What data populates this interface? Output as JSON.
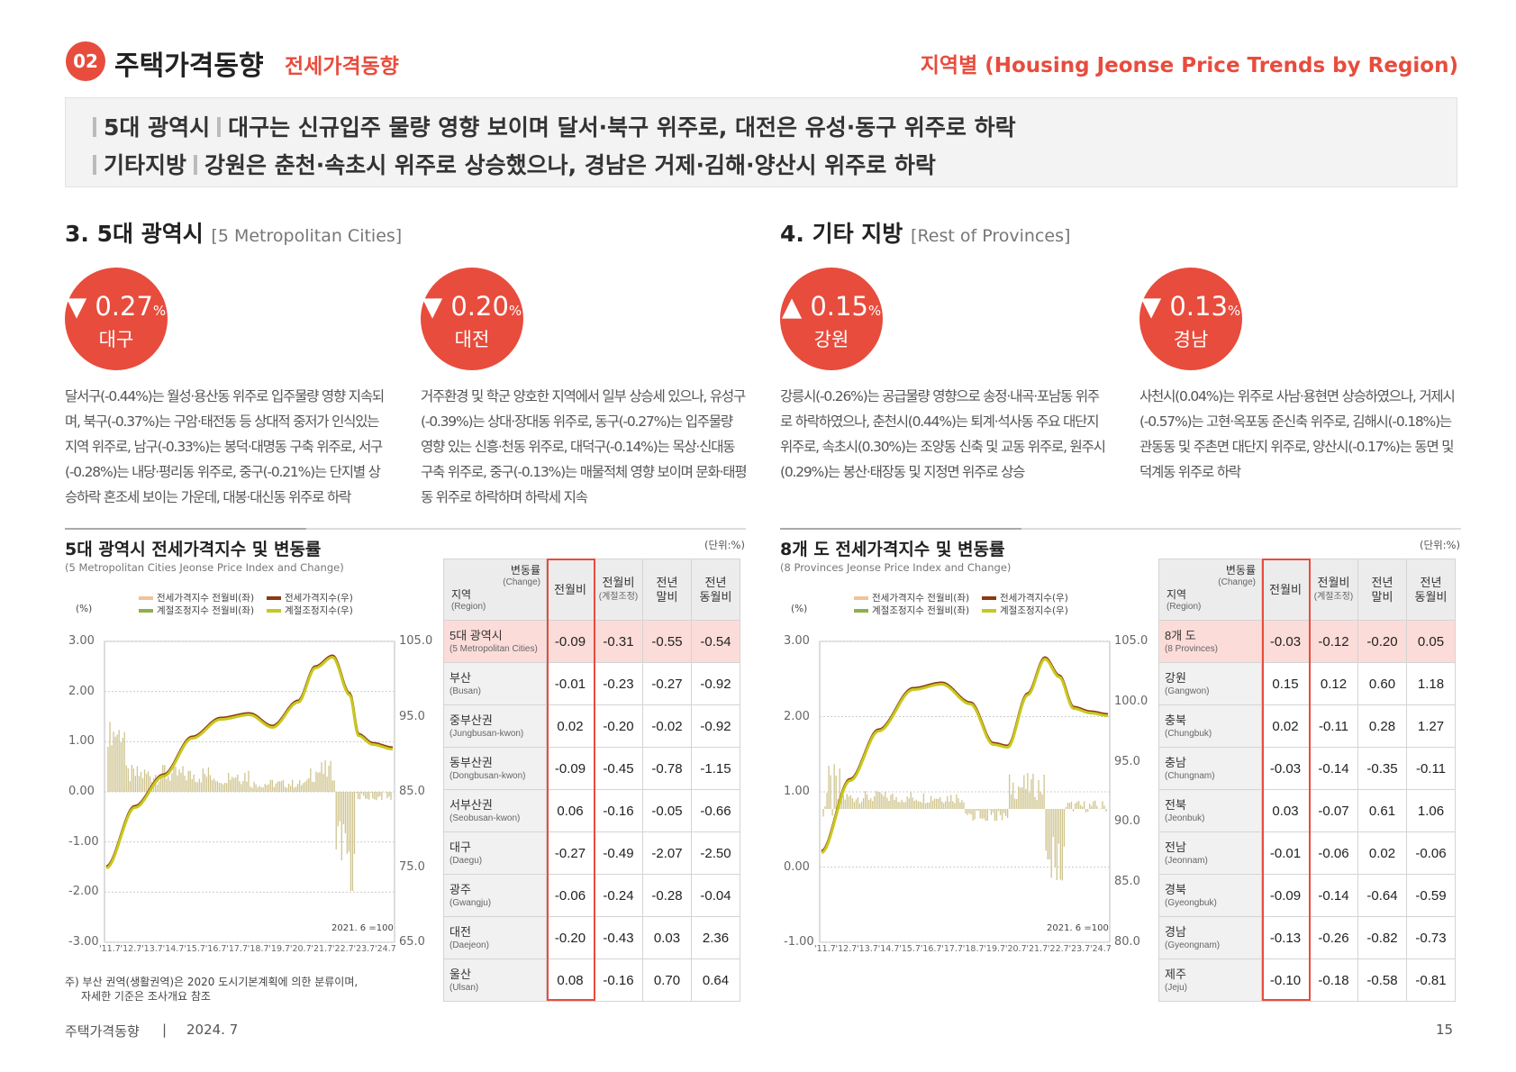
{
  "header": {
    "num": "02",
    "title": "주택가격동향",
    "subtitle": "전세가격동향",
    "right": "지역별 (Housing Jeonse Price Trends by Region)"
  },
  "summary": {
    "line1_tag": "5대 광역시",
    "line1_text": "대구는 신규입주 물량 영향 보이며 달서·북구 위주로, 대전은 유성·동구 위주로 하락",
    "line2_tag": "기타지방",
    "line2_text": "강원은 춘천·속초시 위주로 상승했으나, 경남은 거제·김해·양산시 위주로 하락"
  },
  "sections": {
    "s3": {
      "title": "3. 5대 광역시",
      "en": "[5 Metropolitan Cities]"
    },
    "s4": {
      "title": "4. 기타 지방",
      "en": "[Rest of Provinces]"
    }
  },
  "highlights": [
    {
      "arrow": "▼",
      "value": "0.27",
      "pct": "%",
      "region": "대구",
      "desc": "달서구(-0.44%)는 월성·용산동 위주로 입주물량 영향 지속되며, 북구(-0.37%)는 구암·태전동 등 상대적 중저가 인식있는 지역 위주로, 남구(-0.33%)는 봉덕·대명동 구축 위주로, 서구(-0.28%)는 내당·평리동 위주로, 중구(-0.21%)는 단지별 상승하락 혼조세 보이는 가운데, 대봉·대신동 위주로 하락"
    },
    {
      "arrow": "▼",
      "value": "0.20",
      "pct": "%",
      "region": "대전",
      "desc": "거주환경 및 학군 양호한 지역에서 일부 상승세 있으나, 유성구(-0.39%)는 상대·장대동 위주로, 동구(-0.27%)는 입주물량 영향 있는 신흥·천동 위주로, 대덕구(-0.14%)는 목상·신대동 구축 위주로, 중구(-0.13%)는 매물적체 영향 보이며 문화·태평동 위주로 하락하며 하락세 지속"
    },
    {
      "arrow": "▲",
      "value": "0.15",
      "pct": "%",
      "region": "강원",
      "desc": "강릉시(-0.26%)는 공급물량 영향으로 송정·내곡·포남동 위주로 하락하였으나, 춘천시(0.44%)는 퇴계·석사동 주요 대단지 위주로, 속초시(0.30%)는 조양동 신축 및 교동 위주로, 원주시(0.29%)는 봉산·태장동 및 지정면 위주로 상승"
    },
    {
      "arrow": "▼",
      "value": "0.13",
      "pct": "%",
      "region": "경남",
      "desc": "사천시(0.04%)는 위주로 사남·용현면 상승하였으나, 거제시(-0.57%)는 고현·옥포동 준신축 위주로, 김해시(-0.18%)는 관동동 및 주촌면 대단지 위주로, 양산시(-0.17%)는 동면 및 덕계동 위주로 하락"
    }
  ],
  "chart_left": {
    "title": "5대 광역시 전세가격지수 및 변동률",
    "en": "(5 Metropolitan Cities Jeonse Price Index and Change)",
    "unit": "(단위:%)",
    "pct": "(%)",
    "base": "2021. 6 =100",
    "legend": [
      "전세가격지수 전월비(좌)",
      "전세가격지수(우)",
      "계절조정지수 전월비(좌)",
      "계절조정지수(우)"
    ],
    "yleft": [
      "3.00",
      "2.00",
      "1.00",
      "0.00",
      "-1.00",
      "-2.00",
      "-3.00"
    ],
    "yright": [
      "105.0",
      "95.0",
      "85.0",
      "75.0",
      "65.0"
    ],
    "xticks": [
      "'11.7",
      "'12.7",
      "'13.7",
      "'14.7",
      "'15.7",
      "'16.7",
      "'17.7",
      "'18.7",
      "'19.7",
      "'20.7",
      "'21.7",
      "'22.7",
      "'23.7",
      "'24.7"
    ],
    "note1": "주) 부산 권역(생활권역)은 2020 도시기본계획에 의한 분류이며,",
    "note2": "자세한 기준은 조사개요 참조"
  },
  "chart_right": {
    "title": "8개 도 전세가격지수 및 변동률",
    "en": "(8 Provinces Jeonse Price Index and Change)",
    "unit": "(단위:%)",
    "pct": "(%)",
    "base": "2021. 6 =100",
    "legend": [
      "전세가격지수 전월비(좌)",
      "전세가격지수(우)",
      "계절조정지수 전월비(좌)",
      "계절조정지수(우)"
    ],
    "yleft": [
      "3.00",
      "2.00",
      "1.00",
      "0.00",
      "-1.00"
    ],
    "yright": [
      "105.0",
      "100.0",
      "95.0",
      "90.0",
      "85.0",
      "80.0"
    ],
    "xticks": [
      "'11.7",
      "'12.7",
      "'13.7",
      "'14.7",
      "'15.7",
      "'16.7",
      "'17.7",
      "'18.7",
      "'19.7",
      "'20.7",
      "'21.7",
      "'22.7",
      "'23.7",
      "'24.7"
    ]
  },
  "table_header": {
    "change": "변동률",
    "change_en": "(Change)",
    "region": "지역",
    "region_en": "(Region)",
    "c1": "전월비",
    "c2": "전월비",
    "c2s": "(계절조정)",
    "c3a": "전년",
    "c3b": "말비",
    "c4a": "전년",
    "c4b": "동월비"
  },
  "table_left": [
    {
      "r": "5대 광역시",
      "e": "(5 Metropolitan Cities)",
      "v": [
        "-0.09",
        "-0.31",
        "-0.55",
        "-0.54"
      ]
    },
    {
      "r": "부산",
      "e": "(Busan)",
      "v": [
        "-0.01",
        "-0.23",
        "-0.27",
        "-0.92"
      ]
    },
    {
      "r": "중부산권",
      "e": "(Jungbusan-kwon)",
      "v": [
        "0.02",
        "-0.20",
        "-0.02",
        "-0.92"
      ]
    },
    {
      "r": "동부산권",
      "e": "(Dongbusan-kwon)",
      "v": [
        "-0.09",
        "-0.45",
        "-0.78",
        "-1.15"
      ]
    },
    {
      "r": "서부산권",
      "e": "(Seobusan-kwon)",
      "v": [
        "0.06",
        "-0.16",
        "-0.05",
        "-0.66"
      ]
    },
    {
      "r": "대구",
      "e": "(Daegu)",
      "v": [
        "-0.27",
        "-0.49",
        "-2.07",
        "-2.50"
      ]
    },
    {
      "r": "광주",
      "e": "(Gwangju)",
      "v": [
        "-0.06",
        "-0.24",
        "-0.28",
        "-0.04"
      ]
    },
    {
      "r": "대전",
      "e": "(Daejeon)",
      "v": [
        "-0.20",
        "-0.43",
        "0.03",
        "2.36"
      ]
    },
    {
      "r": "울산",
      "e": "(Ulsan)",
      "v": [
        "0.08",
        "-0.16",
        "0.70",
        "0.64"
      ]
    }
  ],
  "table_right": [
    {
      "r": "8개 도",
      "e": "(8 Provinces)",
      "v": [
        "-0.03",
        "-0.12",
        "-0.20",
        "0.05"
      ]
    },
    {
      "r": "강원",
      "e": "(Gangwon)",
      "v": [
        "0.15",
        "0.12",
        "0.60",
        "1.18"
      ]
    },
    {
      "r": "충북",
      "e": "(Chungbuk)",
      "v": [
        "0.02",
        "-0.11",
        "0.28",
        "1.27"
      ]
    },
    {
      "r": "충남",
      "e": "(Chungnam)",
      "v": [
        "-0.03",
        "-0.14",
        "-0.35",
        "-0.11"
      ]
    },
    {
      "r": "전북",
      "e": "(Jeonbuk)",
      "v": [
        "0.03",
        "-0.07",
        "0.61",
        "1.06"
      ]
    },
    {
      "r": "전남",
      "e": "(Jeonnam)",
      "v": [
        "-0.01",
        "-0.06",
        "0.02",
        "-0.06"
      ]
    },
    {
      "r": "경북",
      "e": "(Gyeongbuk)",
      "v": [
        "-0.09",
        "-0.14",
        "-0.64",
        "-0.59"
      ]
    },
    {
      "r": "경남",
      "e": "(Gyeongnam)",
      "v": [
        "-0.13",
        "-0.26",
        "-0.82",
        "-0.73"
      ]
    },
    {
      "r": "제주",
      "e": "(Jeju)",
      "v": [
        "-0.10",
        "-0.18",
        "-0.58",
        "-0.81"
      ]
    }
  ],
  "footer": {
    "left": "주택가격동향",
    "sep": "|",
    "date": "2024. 7",
    "page": "15"
  },
  "colors": {
    "accent": "#e84c3d",
    "bar": "#cfc48e",
    "line_index": "#8a3a12",
    "line_sa": "#c8c81e"
  }
}
